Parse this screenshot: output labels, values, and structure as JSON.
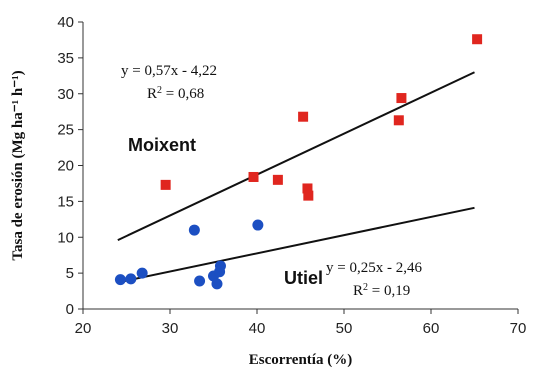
{
  "chart_data": {
    "type": "scatter",
    "xlabel": "Escorrentía (%)",
    "ylabel": "Tasa de erosión (Mg ha⁻¹ h⁻¹)",
    "xlim": [
      20,
      70
    ],
    "ylim": [
      0,
      40
    ],
    "xticks": [
      "20",
      "30",
      "40",
      "50",
      "60",
      "70"
    ],
    "yticks": [
      "0",
      "5",
      "10",
      "15",
      "20",
      "25",
      "30",
      "35",
      "40"
    ],
    "grid": false,
    "series": [
      {
        "name": "Moixent",
        "color": "#e0261f",
        "marker": "square",
        "points": [
          {
            "x": 29.5,
            "y": 17.3
          },
          {
            "x": 39.6,
            "y": 18.4
          },
          {
            "x": 42.4,
            "y": 18.0
          },
          {
            "x": 45.3,
            "y": 26.8
          },
          {
            "x": 45.8,
            "y": 16.8
          },
          {
            "x": 45.9,
            "y": 15.8
          },
          {
            "x": 56.3,
            "y": 26.3
          },
          {
            "x": 56.6,
            "y": 29.4
          },
          {
            "x": 65.3,
            "y": 37.6
          }
        ],
        "trend": {
          "x1": 24,
          "y1": 9.6,
          "x2": 65,
          "y2": 33.0
        },
        "equation": "y = 0,57x - 4,22",
        "r2_prefix": "R",
        "r2_sup": "2",
        "r2_value": " = 0,68"
      },
      {
        "name": "Utiel",
        "color": "#1c4fc2",
        "marker": "circle",
        "points": [
          {
            "x": 24.3,
            "y": 4.1
          },
          {
            "x": 25.5,
            "y": 4.2
          },
          {
            "x": 26.8,
            "y": 5.0
          },
          {
            "x": 32.8,
            "y": 11.0
          },
          {
            "x": 33.4,
            "y": 3.9
          },
          {
            "x": 35.0,
            "y": 4.6
          },
          {
            "x": 35.4,
            "y": 3.5
          },
          {
            "x": 35.7,
            "y": 5.2
          },
          {
            "x": 35.8,
            "y": 6.0
          },
          {
            "x": 40.1,
            "y": 11.7
          }
        ],
        "trend": {
          "x1": 24,
          "y1": 3.7,
          "x2": 65,
          "y2": 14.1
        },
        "equation": "y = 0,25x - 2,46",
        "r2_prefix": "R",
        "r2_sup": "2",
        "r2_value": " = 0,19"
      }
    ]
  }
}
